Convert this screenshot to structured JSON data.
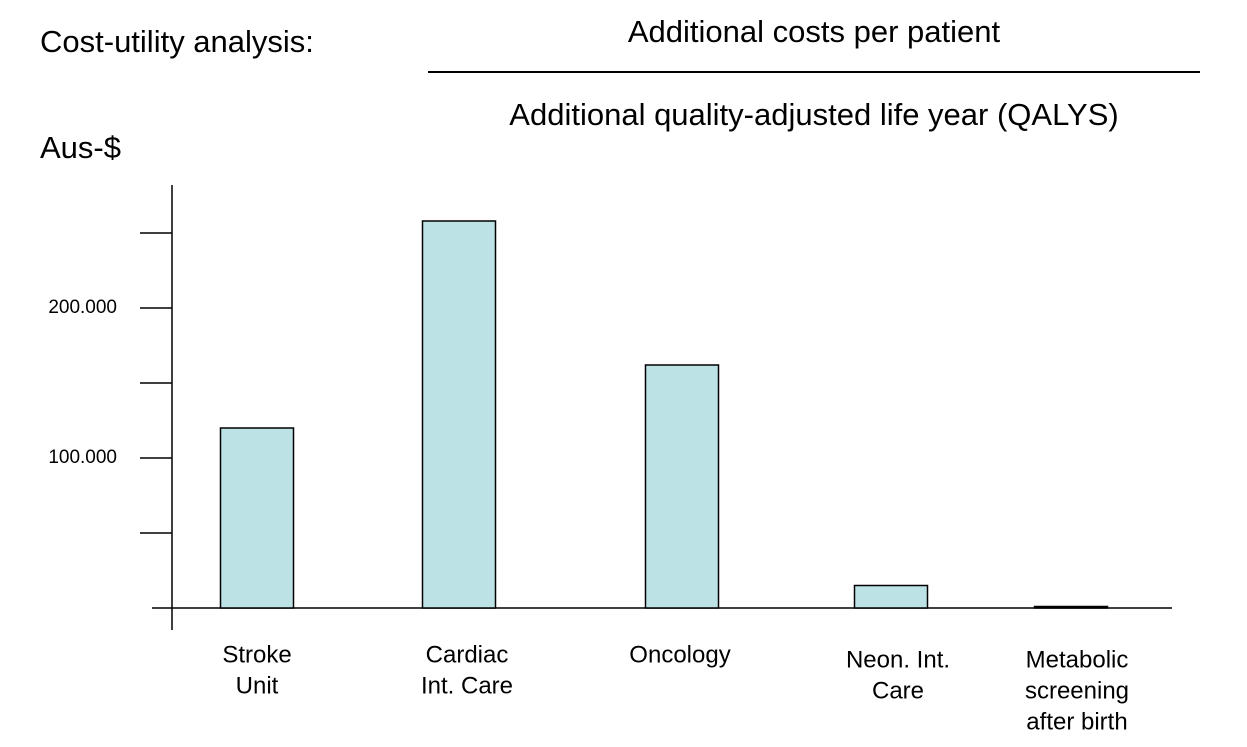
{
  "chart_data": {
    "type": "bar",
    "title": "Cost-utility analysis:",
    "numerator": "Additional costs per patient",
    "denominator": "Additional quality-adjusted life year (QALYS)",
    "y_label": "Aus-$",
    "categories": [
      [
        "Stroke",
        "Unit"
      ],
      [
        "Cardiac",
        "Int. Care"
      ],
      [
        "Oncology"
      ],
      [
        "Neon. Int.",
        "Care"
      ],
      [
        "Metabolic",
        "screening",
        "after birth"
      ]
    ],
    "values": [
      120000,
      258000,
      162000,
      15000,
      1000
    ],
    "color": "#bce2e5",
    "ylim": [
      0,
      280000
    ],
    "yticks": [
      {
        "value": 100000,
        "label": "100.000"
      },
      {
        "value": 200000,
        "label": "200.000"
      }
    ],
    "yminor_ticks": [
      50000,
      150000,
      250000
    ],
    "grid": false
  }
}
